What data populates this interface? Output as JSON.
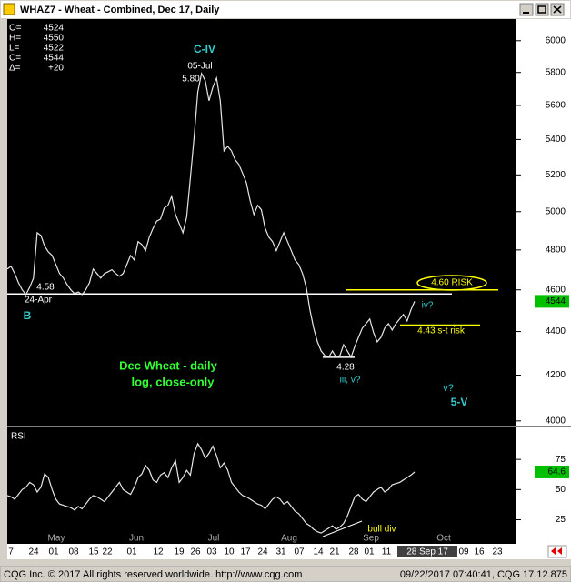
{
  "window": {
    "title": "WHAZ7 - Wheat - Combined, Dec 17, Daily"
  },
  "quote": [
    {
      "label": "O=",
      "value": 4524
    },
    {
      "label": "H=",
      "value": 4550
    },
    {
      "label": "L=",
      "value": 4522
    },
    {
      "label": "C=",
      "value": 4544
    },
    {
      "label": "Δ=",
      "value": "+20"
    }
  ],
  "chart_data": [
    {
      "type": "line",
      "log_scale": true,
      "color": "#e6e6e6",
      "values": [
        4703,
        4717,
        4681,
        4635,
        4600,
        4577,
        4613,
        4658,
        4889,
        4875,
        4820,
        4790,
        4772,
        4726,
        4681,
        4658,
        4626,
        4600,
        4582,
        4590,
        4577,
        4600,
        4635,
        4703,
        4681,
        4658,
        4681,
        4690,
        4700,
        4681,
        4667,
        4681,
        4726,
        4772,
        4749,
        4843,
        4828,
        4796,
        4866,
        4912,
        4950,
        4960,
        5019,
        5034,
        5083,
        4985,
        4937,
        4889,
        4971,
        5183,
        5413,
        5682,
        5794,
        5749,
        5628,
        5710,
        5766,
        5628,
        5335,
        5361,
        5335,
        5284,
        5258,
        5208,
        5157,
        5058,
        4985,
        5034,
        5010,
        4913,
        4866,
        4843,
        4796,
        4843,
        4889,
        4843,
        4796,
        4749,
        4726,
        4681,
        4613,
        4502,
        4416,
        4352,
        4310,
        4288,
        4281,
        4310,
        4281,
        4288,
        4339,
        4310,
        4281,
        4331,
        4373,
        4416,
        4437,
        4459,
        4395,
        4352,
        4373,
        4416,
        4437,
        4407,
        4437,
        4459,
        4481,
        4450,
        4502,
        4544
      ],
      "ylim": [
        3980,
        6140
      ],
      "yticks": [
        4000,
        4200,
        4400,
        4600,
        4800,
        5000,
        5200,
        5400,
        5600,
        5800,
        6000
      ],
      "levels": [
        {
          "value": 4580,
          "color": "#ffffff"
        },
        {
          "value": 4600,
          "color": "#ffff00"
        },
        {
          "value": 4430,
          "color": "#ffff00"
        },
        {
          "value": 4281,
          "color": "#ffffff"
        }
      ],
      "annotations": [
        {
          "text": "C-IV",
          "color": "#33cccc"
        },
        {
          "text": "05-Jul",
          "color": "#ffffff"
        },
        {
          "text": "5.80",
          "color": "#ffffff"
        },
        {
          "text": "4.58",
          "color": "#ffffff"
        },
        {
          "text": "24-Apr",
          "color": "#ffffff"
        },
        {
          "text": "B",
          "color": "#33cccc"
        },
        {
          "text": "4.60 RISK",
          "color": "#ffff00"
        },
        {
          "text": "iv?",
          "color": "#33cccc"
        },
        {
          "text": "4.43 s-t risk",
          "color": "#ffff00"
        },
        {
          "text": "4.28",
          "color": "#ffffff"
        },
        {
          "text": "iii, v?",
          "color": "#33cccc"
        },
        {
          "text": "Dec Wheat - daily",
          "color": "#33ff33"
        },
        {
          "text": "log, close-only",
          "color": "#33ff33"
        },
        {
          "text": "v?",
          "color": "#33cccc"
        },
        {
          "text": "5-V",
          "color": "#33cccc"
        }
      ],
      "months": [
        "May",
        "Jun",
        "Jul",
        "Aug",
        "Sep",
        "Oct"
      ],
      "days": [
        "7",
        "24",
        "01",
        "08",
        "15",
        "22",
        "01",
        "12",
        "19",
        "26",
        "03",
        "10",
        "17",
        "24",
        "31",
        "07",
        "14",
        "21",
        "28",
        "01",
        "11",
        "28 Sep 17",
        "09",
        "16",
        "23"
      ]
    },
    {
      "type": "line",
      "title": "RSI",
      "color": "#e6e6e6",
      "values": [
        45,
        44,
        42,
        46,
        50,
        52,
        56,
        54,
        48,
        52,
        63,
        60,
        50,
        42,
        38,
        37,
        36,
        35,
        33,
        36,
        34,
        38,
        42,
        45,
        44,
        42,
        40,
        44,
        48,
        52,
        56,
        50,
        48,
        46,
        52,
        60,
        63,
        70,
        66,
        58,
        56,
        62,
        64,
        60,
        68,
        74,
        56,
        60,
        66,
        62,
        80,
        88,
        83,
        76,
        80,
        86,
        78,
        68,
        72,
        66,
        56,
        52,
        48,
        45,
        44,
        42,
        40,
        38,
        37,
        34,
        38,
        42,
        44,
        42,
        38,
        40,
        36,
        32,
        30,
        26,
        22,
        20,
        17,
        15,
        14,
        16,
        18,
        20,
        17,
        19,
        22,
        28,
        36,
        44,
        46,
        42,
        40,
        44,
        48,
        50,
        52,
        48,
        50,
        54,
        55,
        56,
        58,
        60,
        62,
        64.6
      ],
      "ylim": [
        5,
        100
      ],
      "yticks": [
        25,
        50,
        75
      ],
      "annotations": [
        {
          "text": "bull div",
          "color": "#ffff00"
        }
      ]
    }
  ],
  "footer": {
    "copyright": "CQG Inc. © 2017 All rights reserved worldwide. http://www.cqg.com",
    "timestamp": "09/22/2017 07:40:41, CQG 17.12.875"
  }
}
